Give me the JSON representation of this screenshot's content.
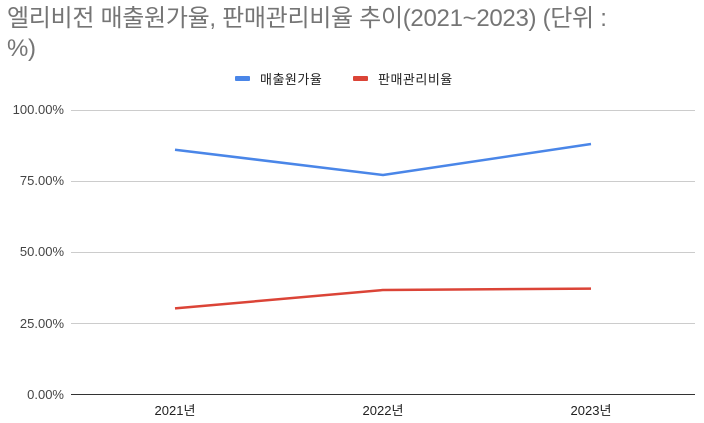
{
  "chart_data": {
    "type": "line",
    "title": "엘리비전 매출원가율, 판매관리비율 추이(2021~2023) (단위 : %)",
    "xlabel": "",
    "ylabel": "",
    "categories": [
      "2021년",
      "2022년",
      "2023년"
    ],
    "series": [
      {
        "name": "매출원가율",
        "color": "#4a86e8",
        "values": [
          86.2,
          77.3,
          88.2
        ]
      },
      {
        "name": "판매관리비율",
        "color": "#db4437",
        "values": [
          30.3,
          36.8,
          37.3
        ]
      }
    ],
    "ylim": [
      0,
      100
    ],
    "yticks": [
      "0.00%",
      "25.00%",
      "50.00%",
      "75.00%",
      "100.00%"
    ],
    "grid": true,
    "legend_position": "top"
  },
  "title": {
    "line1": "엘리비전 매출원가율, 판매관리비율 추이(2021~2023) (단위 :",
    "line2": "%)"
  },
  "legend": [
    {
      "label": "매출원가율",
      "color": "#4a86e8"
    },
    {
      "label": "판매관리비율",
      "color": "#db4437"
    }
  ],
  "axis": {
    "y_labels": [
      "100.00%",
      "75.00%",
      "50.00%",
      "25.00%",
      "0.00%"
    ],
    "x_labels": [
      "2021년",
      "2022년",
      "2023년"
    ]
  }
}
